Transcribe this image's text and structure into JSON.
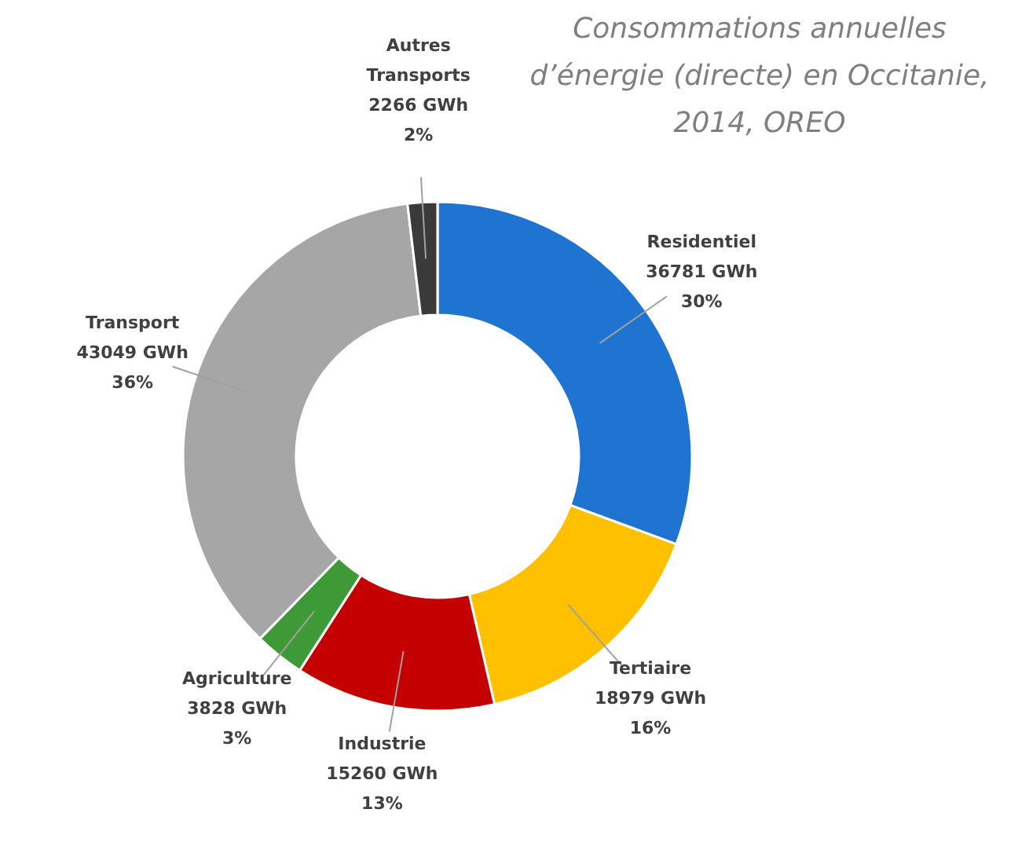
{
  "chart_data": {
    "type": "donut",
    "title": "Consommations annuelles\nd’énergie (directe) en Occitanie,\n2014, OREO",
    "categories": [
      "Residentiel",
      "Tertiaire",
      "Industrie",
      "Agriculture",
      "Transport",
      "Autres\nTransports"
    ],
    "values": [
      36781,
      18979,
      15260,
      3828,
      43049,
      2266
    ],
    "colors": [
      "#1f74d2",
      "#ffc000",
      "#c40000",
      "#3e9a36",
      "#a6a6a6",
      "#3a3a3a"
    ],
    "value_labels": [
      "36781 GWh\n30%",
      "18979 GWh\n16%",
      "15260 GWh\n13%",
      "3828 GWh\n3%",
      "43049 GWh\n36%",
      "2266 GWh\n2%"
    ]
  }
}
